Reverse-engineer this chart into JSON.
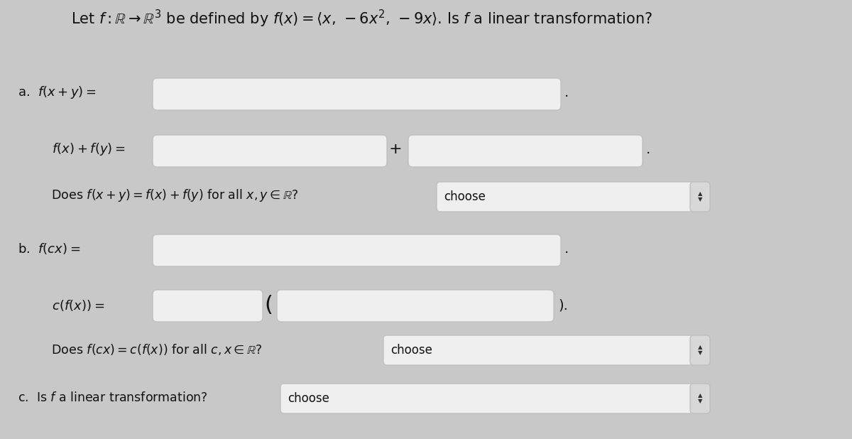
{
  "bg_color": "#c8c8c8",
  "title_fontsize": 15,
  "box_color": "#efefef",
  "box_edge_color": "#c0c0c0",
  "text_color": "#111111",
  "section_a_label": "a.  $f(x + y) =$",
  "section_a2_label": "     $f(x) + f(y) =$",
  "section_a3_label": "     Does $f(x + y) = f(x) + f(y)$ for all $x, y \\in \\mathbb{R}$?",
  "choose_text": "choose",
  "section_b_label": "b.  $f(cx) =$",
  "section_b2_label": "     $c(f(x)) =$",
  "section_b3_label": "     Does $f(cx) = c(f(x))$ for all $c, x \\in \\mathbb{R}$?",
  "section_c_label": "c.  Is $f$ a linear transformation?",
  "dropdown_bg": "#efefef",
  "dropdown_edge": "#b0b0b0",
  "arrow_color": "#333333",
  "title_line1": "Let $f : \\mathbb{R} \\rightarrow \\mathbb{R}^3$ be defined by $f(x) = \\langle x,\\,-6x^2,\\,-9x \\rangle$. Is $f$ a linear transformation?"
}
